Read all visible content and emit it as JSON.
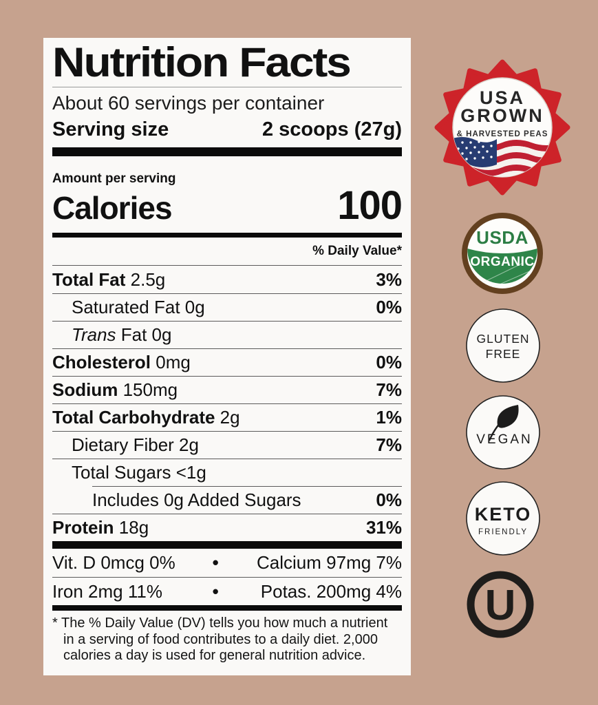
{
  "colors": {
    "background": "#c6a28e",
    "label_bg": "#faf9f7",
    "text": "#111111",
    "starburst_red": "#cd2329",
    "flag_blue": "#273c72",
    "flag_red": "#c02032",
    "usda_green": "#2e8549",
    "usda_text_green": "#2c7d44",
    "usda_brown": "#63401f",
    "badge_ring_black": "#232323"
  },
  "label": {
    "title": "Nutrition Facts",
    "servings_per_container": "About 60 servings per container",
    "serving_size_label": "Serving size",
    "serving_size_value": "2 scoops (27g)",
    "amount_per_serving": "Amount per serving",
    "calories_label": "Calories",
    "calories_value": "100",
    "daily_value_header": "% Daily Value*",
    "rows": [
      {
        "segments": [
          {
            "text": "Total Fat",
            "bold": true
          },
          {
            "text": " 2.5g"
          }
        ],
        "dv": "3%",
        "indent": 0
      },
      {
        "segments": [
          {
            "text": "Saturated Fat 0g"
          }
        ],
        "dv": "0%",
        "indent": 1
      },
      {
        "segments": [
          {
            "text": "Trans",
            "italic": true
          },
          {
            "text": " Fat 0g"
          }
        ],
        "dv": "",
        "indent": 1
      },
      {
        "segments": [
          {
            "text": "Cholesterol",
            "bold": true
          },
          {
            "text": " 0mg"
          }
        ],
        "dv": "0%",
        "indent": 0
      },
      {
        "segments": [
          {
            "text": "Sodium",
            "bold": true
          },
          {
            "text": " 150mg"
          }
        ],
        "dv": "7%",
        "indent": 0
      },
      {
        "segments": [
          {
            "text": "Total Carbohydrate",
            "bold": true
          },
          {
            "text": " 2g"
          }
        ],
        "dv": "1%",
        "indent": 0
      },
      {
        "segments": [
          {
            "text": "Dietary Fiber 2g"
          }
        ],
        "dv": "7%",
        "indent": 1
      },
      {
        "segments": [
          {
            "text": "Total Sugars <1g"
          }
        ],
        "dv": "",
        "indent": 1
      },
      {
        "segments": [
          {
            "text": "Includes 0g Added Sugars"
          }
        ],
        "dv": "0%",
        "indent": 2,
        "rule_inset": true
      },
      {
        "segments": [
          {
            "text": "Protein",
            "bold": true
          },
          {
            "text": " 18g"
          }
        ],
        "dv": "31%",
        "indent": 0
      }
    ],
    "micronutrients": [
      {
        "left": "Vit. D 0mcg 0%",
        "bullet": "•",
        "right": "Calcium 97mg 7%"
      },
      {
        "left": "Iron 2mg 11%",
        "bullet": "•",
        "right": "Potas. 200mg 4%"
      }
    ],
    "footnote": "* The % Daily Value (DV) tells you how much a nutrient in a serving of food contributes to a daily diet. 2,000 calories a day is used for general nutrition advice."
  },
  "badges": {
    "usa_grown": {
      "line1": "USA",
      "line2": "GROWN",
      "line3": "& HARVESTED PEAS"
    },
    "usda_organic": {
      "top": "USDA",
      "bottom": "ORGANIC"
    },
    "gluten_free": {
      "line1": "GLUTEN",
      "line2": "FREE"
    },
    "vegan": {
      "label": "VEGAN"
    },
    "keto": {
      "label": "KETO",
      "sub": "FRIENDLY"
    },
    "kosher": {
      "letter": "U"
    }
  }
}
